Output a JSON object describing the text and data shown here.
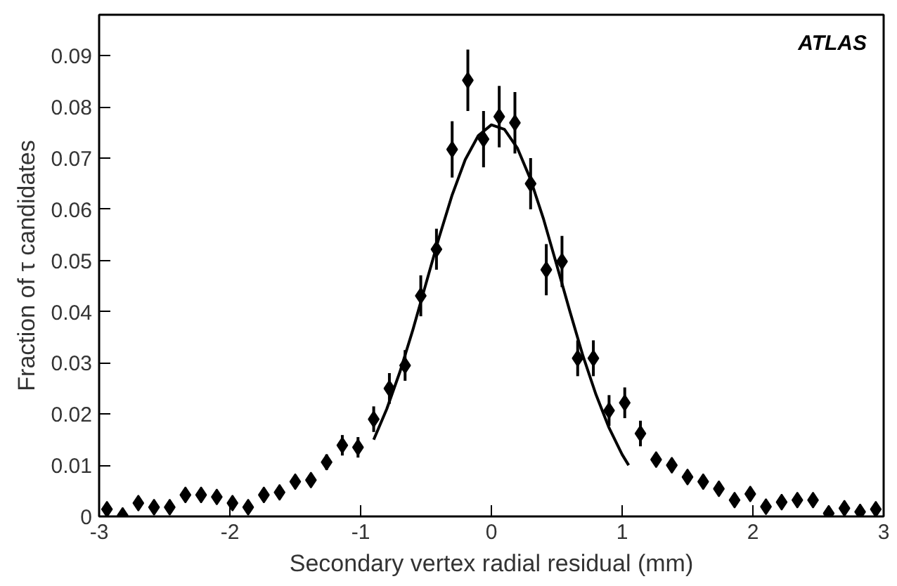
{
  "chart_data": {
    "type": "scatter",
    "xlabel": "Secondary vertex radial residual (mm)",
    "ylabel": "Fraction of τ candidates",
    "annotations": [
      "ATLAS"
    ],
    "xlim": [
      -3,
      3
    ],
    "xticks": [
      -3,
      -2,
      -1,
      0,
      1,
      2,
      3
    ],
    "ylim": [
      0,
      0.098
    ],
    "yticks": [
      0,
      0.01,
      0.02,
      0.03,
      0.04,
      0.05,
      0.06,
      0.07,
      0.08,
      0.09
    ],
    "grid": false,
    "series": [
      {
        "marker": "diamond",
        "color": "#000000",
        "x": [
          -2.94,
          -2.82,
          -2.7,
          -2.58,
          -2.46,
          -2.34,
          -2.22,
          -2.1,
          -1.98,
          -1.86,
          -1.74,
          -1.62,
          -1.5,
          -1.38,
          -1.26,
          -1.14,
          -1.02,
          -0.9,
          -0.78,
          -0.66,
          -0.54,
          -0.42,
          -0.3,
          -0.18,
          -0.06,
          0.06,
          0.18,
          0.3,
          0.42,
          0.54,
          0.66,
          0.78,
          0.9,
          1.02,
          1.14,
          1.26,
          1.38,
          1.5,
          1.62,
          1.74,
          1.86,
          1.98,
          2.1,
          2.22,
          2.34,
          2.46,
          2.58,
          2.7,
          2.82,
          2.94
        ],
        "values": [
          0.0014,
          0.0002,
          0.0026,
          0.0018,
          0.0018,
          0.0042,
          0.0042,
          0.0038,
          0.0026,
          0.0018,
          0.0042,
          0.0047,
          0.0068,
          0.0071,
          0.0106,
          0.0139,
          0.0135,
          0.019,
          0.025,
          0.0295,
          0.0431,
          0.0522,
          0.0717,
          0.0852,
          0.0737,
          0.0781,
          0.0769,
          0.065,
          0.0482,
          0.0498,
          0.0309,
          0.0309,
          0.0207,
          0.0222,
          0.0162,
          0.0111,
          0.01,
          0.0077,
          0.0068,
          0.0054,
          0.0032,
          0.0044,
          0.0019,
          0.0028,
          0.0032,
          0.0032,
          0.0006,
          0.0016,
          0.0009,
          0.0014
        ],
        "errors": [
          null,
          null,
          null,
          null,
          null,
          null,
          null,
          null,
          null,
          null,
          null,
          null,
          null,
          null,
          0.0015,
          0.002,
          0.002,
          0.0025,
          0.003,
          0.003,
          0.004,
          0.004,
          0.0055,
          0.006,
          0.0055,
          0.006,
          0.006,
          0.005,
          0.005,
          0.005,
          0.0035,
          0.0035,
          0.003,
          0.003,
          0.0025,
          null,
          null,
          null,
          null,
          null,
          null,
          null,
          null,
          null,
          null,
          null,
          null,
          null,
          null,
          null
        ]
      },
      {
        "type": "line",
        "color": "#000000",
        "line_style": "solid",
        "x": [
          -0.9,
          -0.8,
          -0.7,
          -0.6,
          -0.5,
          -0.4,
          -0.3,
          -0.2,
          -0.1,
          0,
          0.1,
          0.2,
          0.3,
          0.4,
          0.5,
          0.6,
          0.7,
          0.8,
          0.9,
          1.0,
          1.05
        ],
        "values": [
          0.015,
          0.021,
          0.0282,
          0.0365,
          0.0455,
          0.0545,
          0.0628,
          0.0697,
          0.0744,
          0.0765,
          0.0756,
          0.0719,
          0.0658,
          0.058,
          0.0491,
          0.0401,
          0.0314,
          0.0238,
          0.0173,
          0.0121,
          0.01
        ]
      }
    ]
  }
}
